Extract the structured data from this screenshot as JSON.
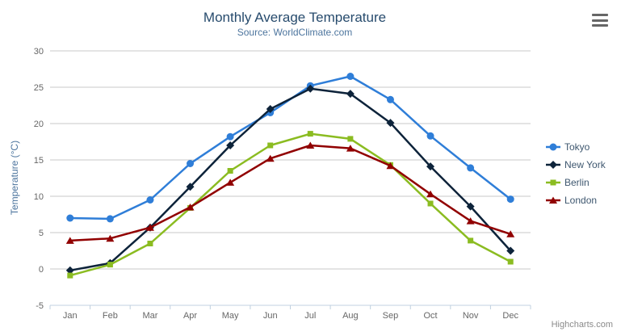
{
  "chart": {
    "title": "Monthly Average Temperature",
    "subtitle": "Source: WorldClimate.com",
    "credits": "Highcharts.com",
    "menu_icon": "hamburger-icon"
  },
  "colors": {
    "title": "#274b6d",
    "subtitle": "#4d759e",
    "axis_label": "#666666",
    "grid_line": "#c8c8c8",
    "axis_line": "#c0d0e0",
    "legend_text": "#3e576f",
    "credits": "#8a8a8a",
    "menu_icon": "#666666"
  },
  "chart_data": {
    "type": "line",
    "title": "Monthly Average Temperature",
    "subtitle": "Source: WorldClimate.com",
    "xlabel": "",
    "ylabel": "Temperature (°C)",
    "categories": [
      "Jan",
      "Feb",
      "Mar",
      "Apr",
      "May",
      "Jun",
      "Jul",
      "Aug",
      "Sep",
      "Oct",
      "Nov",
      "Dec"
    ],
    "series": [
      {
        "name": "Tokyo",
        "color": "#2f7ed8",
        "marker": "circle",
        "values": [
          7.0,
          6.9,
          9.5,
          14.5,
          18.2,
          21.5,
          25.2,
          26.5,
          23.3,
          18.3,
          13.9,
          9.6
        ]
      },
      {
        "name": "New York",
        "color": "#0d233a",
        "marker": "diamond",
        "values": [
          -0.2,
          0.8,
          5.7,
          11.3,
          17.0,
          22.0,
          24.8,
          24.1,
          20.1,
          14.1,
          8.6,
          2.5
        ]
      },
      {
        "name": "Berlin",
        "color": "#8bbc21",
        "marker": "square",
        "values": [
          -0.9,
          0.6,
          3.5,
          8.4,
          13.5,
          17.0,
          18.6,
          17.9,
          14.3,
          9.0,
          3.9,
          1.0
        ]
      },
      {
        "name": "London",
        "color": "#910000",
        "marker": "triangle",
        "values": [
          3.9,
          4.2,
          5.7,
          8.5,
          11.9,
          15.2,
          17.0,
          16.6,
          14.2,
          10.3,
          6.6,
          4.8
        ]
      }
    ],
    "ylim": [
      -5,
      30
    ],
    "yticks": [
      -5,
      0,
      5,
      10,
      15,
      20,
      25,
      30
    ],
    "grid": true,
    "legend_position": "right"
  }
}
